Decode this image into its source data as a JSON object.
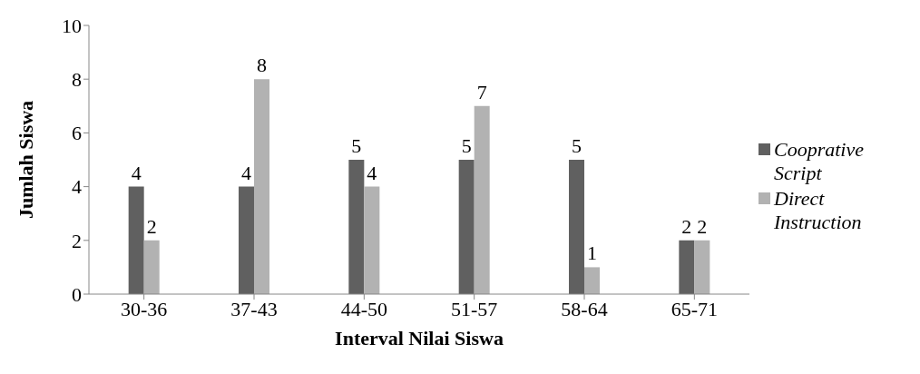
{
  "chart_data": {
    "type": "bar",
    "xlabel": "Interval Nilai Siswa",
    "ylabel": "Jumlah Siswa",
    "categories": [
      "30-36",
      "37-43",
      "44-50",
      "51-57",
      "58-64",
      "65-71"
    ],
    "series": [
      {
        "name": "Cooprative Script",
        "color": "#606060",
        "values": [
          4,
          4,
          5,
          5,
          5,
          2
        ]
      },
      {
        "name": "Direct Instruction",
        "color": "#b2b2b2",
        "values": [
          2,
          8,
          4,
          7,
          1,
          2
        ]
      }
    ],
    "ylim": [
      0,
      10
    ],
    "yticks": [
      0,
      2,
      4,
      6,
      8,
      10
    ],
    "grid": false,
    "legend": "right",
    "data_labels": true
  }
}
